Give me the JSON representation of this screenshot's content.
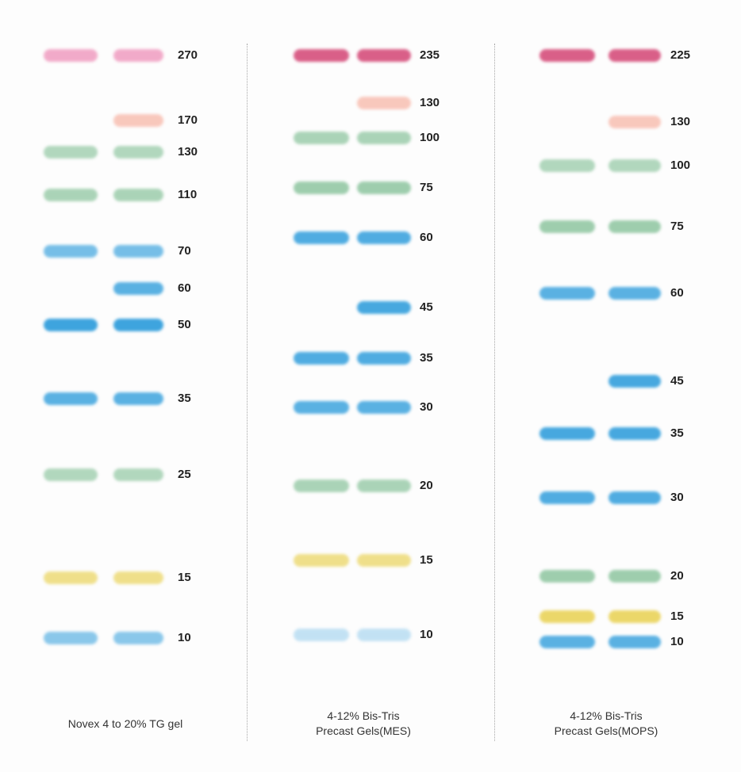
{
  "colors": {
    "pink": "#ec7fae",
    "deep-pink": "#d64f7c",
    "salmon": "#f6a592",
    "green": "#7fbe93",
    "blue": "#3ea4de",
    "yellow": "#ead35a"
  },
  "gels": [
    {
      "caption": [
        "Novex 4 to 20% TG gel"
      ],
      "bands": [
        {
          "mw": "270",
          "color": "pink",
          "lanes": [
            1,
            1
          ]
        },
        {
          "mw": "170",
          "color": "salmon",
          "lanes": [
            0,
            1
          ]
        },
        {
          "mw": "130",
          "color": "green",
          "lanes": [
            1,
            1
          ]
        },
        {
          "mw": "110",
          "color": "green",
          "lanes": [
            1,
            1
          ]
        },
        {
          "mw": "70",
          "color": "blue",
          "lanes": [
            1,
            1
          ]
        },
        {
          "mw": "60",
          "color": "blue",
          "lanes": [
            0,
            1
          ]
        },
        {
          "mw": "50",
          "color": "blue",
          "lanes": [
            1,
            1
          ]
        },
        {
          "mw": "35",
          "color": "blue",
          "lanes": [
            1,
            1
          ]
        },
        {
          "mw": "25",
          "color": "green",
          "lanes": [
            1,
            1
          ]
        },
        {
          "mw": "15",
          "color": "yellow",
          "lanes": [
            1,
            1
          ]
        },
        {
          "mw": "10",
          "color": "blue",
          "lanes": [
            1,
            1
          ]
        }
      ]
    },
    {
      "caption": [
        "4-12% Bis-Tris",
        "Precast Gels(MES)"
      ],
      "bands": [
        {
          "mw": "235",
          "color": "deep-pink",
          "lanes": [
            1,
            1
          ]
        },
        {
          "mw": "130",
          "color": "salmon",
          "lanes": [
            0,
            1
          ]
        },
        {
          "mw": "100",
          "color": "green",
          "lanes": [
            1,
            1
          ]
        },
        {
          "mw": "75",
          "color": "green",
          "lanes": [
            1,
            1
          ]
        },
        {
          "mw": "60",
          "color": "blue",
          "lanes": [
            1,
            1
          ]
        },
        {
          "mw": "45",
          "color": "blue",
          "lanes": [
            0,
            1
          ]
        },
        {
          "mw": "35",
          "color": "blue",
          "lanes": [
            1,
            1
          ]
        },
        {
          "mw": "30",
          "color": "blue",
          "lanes": [
            1,
            1
          ]
        },
        {
          "mw": "20",
          "color": "green",
          "lanes": [
            1,
            1
          ]
        },
        {
          "mw": "15",
          "color": "yellow",
          "lanes": [
            1,
            1
          ]
        },
        {
          "mw": "10",
          "color": "blue",
          "lanes": [
            1,
            1
          ]
        }
      ]
    },
    {
      "caption": [
        "4-12% Bis-Tris",
        "Precast Gels(MOPS)"
      ],
      "bands": [
        {
          "mw": "225",
          "color": "deep-pink",
          "lanes": [
            1,
            1
          ]
        },
        {
          "mw": "130",
          "color": "salmon",
          "lanes": [
            0,
            1
          ]
        },
        {
          "mw": "100",
          "color": "green",
          "lanes": [
            1,
            1
          ]
        },
        {
          "mw": "75",
          "color": "green",
          "lanes": [
            1,
            1
          ]
        },
        {
          "mw": "60",
          "color": "blue",
          "lanes": [
            1,
            1
          ]
        },
        {
          "mw": "45",
          "color": "blue",
          "lanes": [
            0,
            1
          ]
        },
        {
          "mw": "35",
          "color": "blue",
          "lanes": [
            1,
            1
          ]
        },
        {
          "mw": "30",
          "color": "blue",
          "lanes": [
            1,
            1
          ]
        },
        {
          "mw": "20",
          "color": "green",
          "lanes": [
            1,
            1
          ]
        },
        {
          "mw": "15",
          "color": "yellow",
          "lanes": [
            1,
            1
          ]
        },
        {
          "mw": "10",
          "color": "blue",
          "lanes": [
            1,
            1
          ]
        }
      ]
    }
  ]
}
